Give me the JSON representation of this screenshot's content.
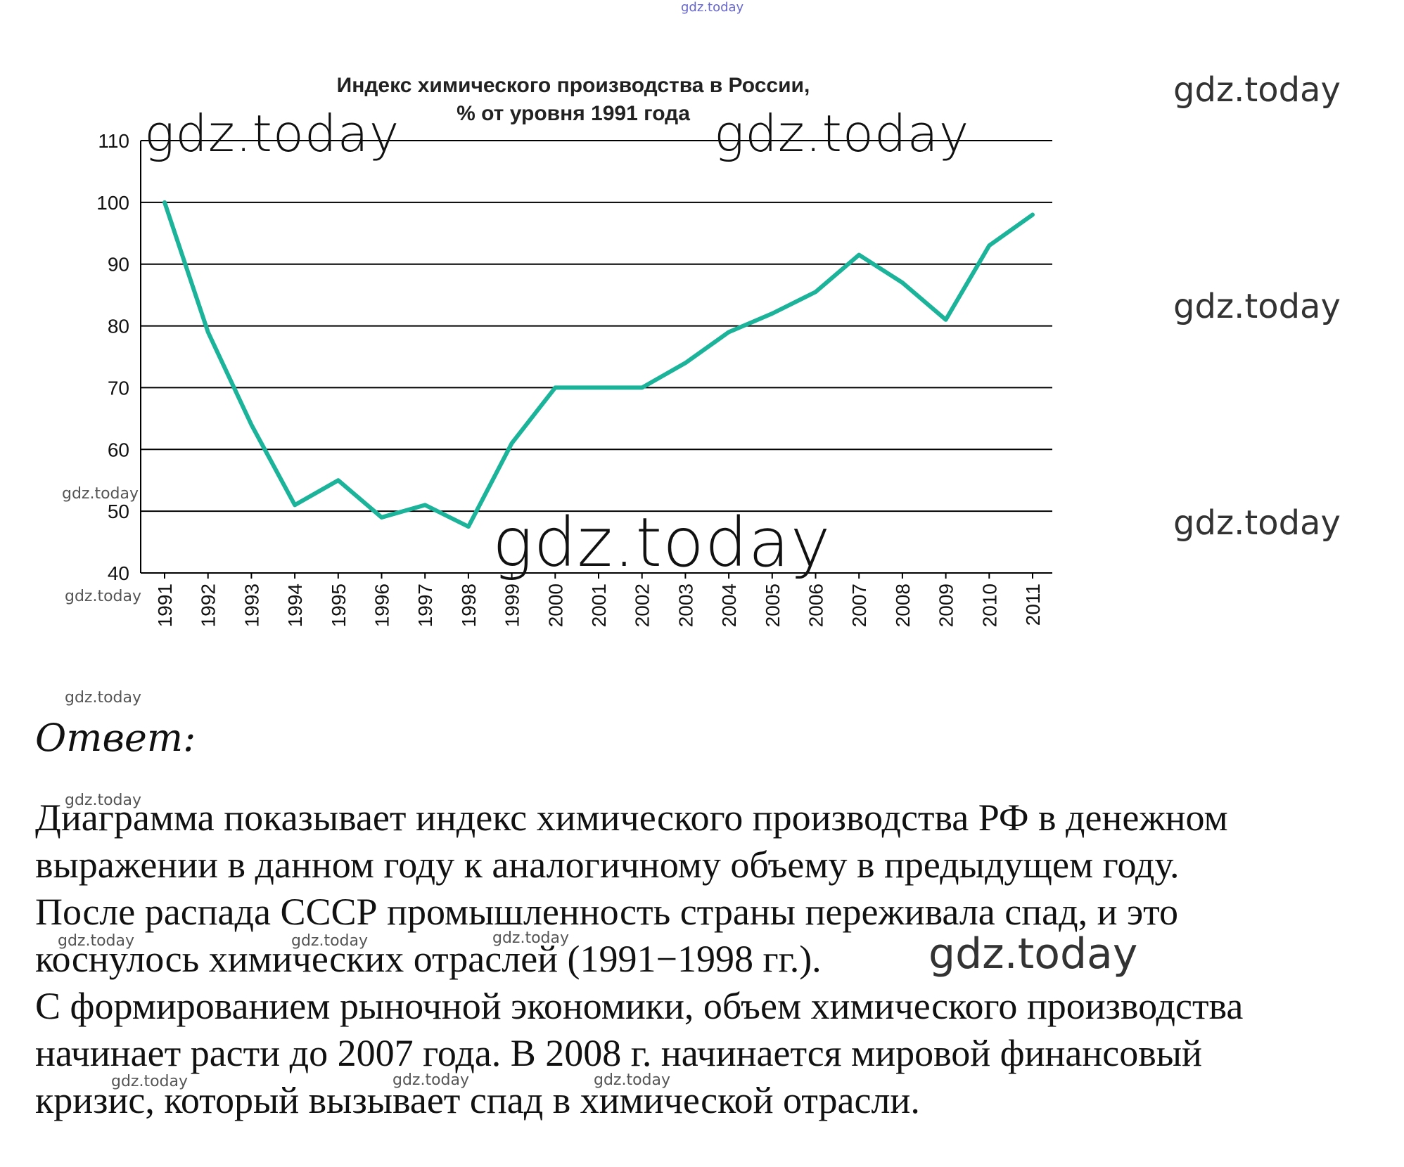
{
  "chart_data": {
    "type": "line",
    "title": "Индекс химического производства в России,",
    "subtitle": "% от уровня 1991 года",
    "xlabel": "",
    "ylabel": "",
    "x": [
      "1991",
      "1992",
      "1993",
      "1994",
      "1995",
      "1996",
      "1997",
      "1998",
      "1999",
      "2000",
      "2001",
      "2002",
      "2003",
      "2004",
      "2005",
      "2006",
      "2007",
      "2008",
      "2009",
      "2010",
      "2011"
    ],
    "series": [
      {
        "values": [
          100,
          79,
          64,
          51,
          55,
          49,
          51,
          47.5,
          61,
          70,
          70,
          70,
          74,
          79,
          82,
          85.5,
          91.5,
          87,
          81,
          93,
          98
        ]
      }
    ],
    "ylim": [
      40,
      110
    ],
    "yticks": [
      "110",
      "100",
      "90",
      "80",
      "70",
      "60",
      "50",
      "40"
    ],
    "grid": true,
    "line_color": "#1bb39a",
    "grid_color": "#000000"
  },
  "answer": {
    "heading": "Ответ:",
    "lines": [
      "Диаграмма показывает индекс химического производства РФ в денежном",
      "выражении в данном году к аналогичному объему в предыдущем году.",
      "После распада СССР промышленность страны переживала спад, и это",
      "коснулось химических отраслей (1991−1998 гг.).",
      "С формированием рыночной экономики, объем химического производства",
      "начинает расти до 2007 года. В 2008 г. начинается мировой финансовый",
      "кризис, который вызывает спад в химической отрасли."
    ]
  },
  "watermark": "gdz.today"
}
